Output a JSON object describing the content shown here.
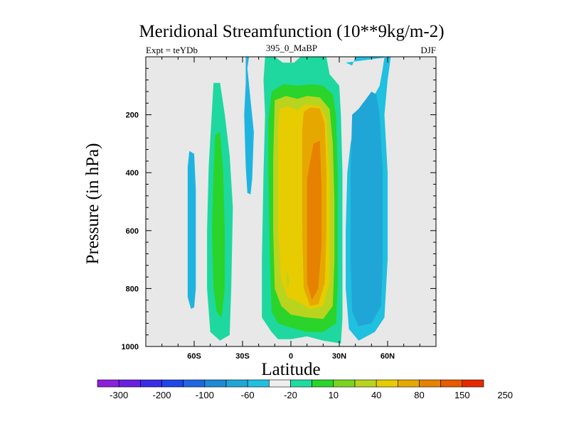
{
  "chart_data": {
    "type": "contour",
    "title": "Meridional Streamfunction (10**9kg/m-2)",
    "left_string": "Expt = teYDb",
    "center_string": "395_0_MaBP",
    "right_string": "DJF",
    "xlabel": "Latitude",
    "ylabel": "Pressure (in hPa)",
    "xlim": [
      -90,
      90
    ],
    "ylim": [
      1000,
      0
    ],
    "x_ticks": [
      {
        "value": -60,
        "label": "60S"
      },
      {
        "value": -30,
        "label": "30S"
      },
      {
        "value": 0,
        "label": "0"
      },
      {
        "value": 30,
        "label": "30N"
      },
      {
        "value": 60,
        "label": "60N"
      }
    ],
    "y_ticks": [
      {
        "value": 200,
        "label": "200"
      },
      {
        "value": 400,
        "label": "400"
      },
      {
        "value": 600,
        "label": "600"
      },
      {
        "value": 800,
        "label": "800"
      },
      {
        "value": 1000,
        "label": "1000"
      }
    ],
    "colorbar": {
      "labels": [
        "-300",
        "-200",
        "-100",
        "-60",
        "-20",
        "10",
        "40",
        "80",
        "150",
        "250"
      ],
      "colors": [
        "#8c1fd9",
        "#6a1fe0",
        "#3b2be8",
        "#1f46e8",
        "#1f66e0",
        "#1f8ad6",
        "#1fa6d6",
        "#1fc0e0",
        "#eeeeee",
        "#1fdca0",
        "#2ad42a",
        "#7cd41f",
        "#b8d41f",
        "#e6cc00",
        "#e6a800",
        "#e68200",
        "#e65a00",
        "#e62a00"
      ]
    },
    "regions": [
      {
        "name": "sh-high-lat-negative-cell",
        "fill": "#1fb4e0",
        "points": [
          [
            -63,
            325
          ],
          [
            -60,
            335
          ],
          [
            -59,
            460
          ],
          [
            -59,
            800
          ],
          [
            -60,
            865
          ],
          [
            -62,
            870
          ],
          [
            -64,
            830
          ],
          [
            -64,
            600
          ],
          [
            -64,
            380
          ]
        ]
      },
      {
        "name": "sh-midlat-positive-cell",
        "fill": "#1ed8a0",
        "points": [
          [
            -48,
            90
          ],
          [
            -44,
            90
          ],
          [
            -41,
            200
          ],
          [
            -38,
            340
          ],
          [
            -36,
            520
          ],
          [
            -37,
            800
          ],
          [
            -38,
            960
          ],
          [
            -44,
            980
          ],
          [
            -50,
            950
          ],
          [
            -52,
            800
          ],
          [
            -52,
            600
          ],
          [
            -51,
            380
          ]
        ]
      },
      {
        "name": "sh-midlat-positive-core",
        "fill": "#2ad42a",
        "points": [
          [
            -47,
            270
          ],
          [
            -44,
            260
          ],
          [
            -42,
            400
          ],
          [
            -41,
            600
          ],
          [
            -41,
            800
          ],
          [
            -43,
            900
          ],
          [
            -46,
            880
          ],
          [
            -48,
            800
          ],
          [
            -49,
            600
          ],
          [
            -48,
            400
          ]
        ]
      },
      {
        "name": "sh-upper-negative-streak",
        "fill": "#1fb4e0",
        "points": [
          [
            -28,
            0
          ],
          [
            -26,
            0
          ],
          [
            -27,
            40
          ],
          [
            -25,
            150
          ],
          [
            -23,
            260
          ],
          [
            -24,
            420
          ],
          [
            -25,
            475
          ],
          [
            -27,
            470
          ],
          [
            -28,
            380
          ],
          [
            -29,
            200
          ],
          [
            -28,
            90
          ]
        ]
      },
      {
        "name": "tropical-cell-outer",
        "fill": "#1ed8a0",
        "points": [
          [
            -16,
            0
          ],
          [
            -10,
            0
          ],
          [
            -5,
            20
          ],
          [
            2,
            20
          ],
          [
            6,
            0
          ],
          [
            22,
            0
          ],
          [
            24,
            60
          ],
          [
            30,
            100
          ],
          [
            31,
            200
          ],
          [
            32,
            400
          ],
          [
            32,
            600
          ],
          [
            32,
            900
          ],
          [
            31,
            990
          ],
          [
            26,
            985
          ],
          [
            20,
            980
          ],
          [
            10,
            965
          ],
          [
            0,
            975
          ],
          [
            -8,
            975
          ],
          [
            -12,
            950
          ],
          [
            -18,
            900
          ],
          [
            -18,
            700
          ],
          [
            -17,
            400
          ],
          [
            -16,
            200
          ],
          [
            -17,
            80
          ]
        ]
      },
      {
        "name": "tropical-cell-40",
        "fill": "#2ad42a",
        "points": [
          [
            -12,
            120
          ],
          [
            -5,
            95
          ],
          [
            5,
            100
          ],
          [
            12,
            95
          ],
          [
            20,
            100
          ],
          [
            26,
            130
          ],
          [
            28,
            200
          ],
          [
            29,
            400
          ],
          [
            29,
            600
          ],
          [
            29,
            800
          ],
          [
            28,
            920
          ],
          [
            20,
            950
          ],
          [
            10,
            950
          ],
          [
            0,
            935
          ],
          [
            -8,
            920
          ],
          [
            -12,
            880
          ],
          [
            -13,
            700
          ],
          [
            -14,
            400
          ],
          [
            -14,
            220
          ]
        ]
      },
      {
        "name": "tropical-cell-80",
        "fill": "#b8d41f",
        "points": [
          [
            -10,
            150
          ],
          [
            -3,
            135
          ],
          [
            4,
            145
          ],
          [
            10,
            135
          ],
          [
            18,
            140
          ],
          [
            24,
            180
          ],
          [
            26,
            300
          ],
          [
            27,
            500
          ],
          [
            27,
            700
          ],
          [
            26,
            860
          ],
          [
            20,
            905
          ],
          [
            10,
            900
          ],
          [
            0,
            890
          ],
          [
            -6,
            860
          ],
          [
            -10,
            800
          ],
          [
            -11,
            600
          ],
          [
            -11,
            350
          ]
        ]
      },
      {
        "name": "tropical-cell-150",
        "fill": "#e6cc00",
        "points": [
          [
            -7,
            180
          ],
          [
            -2,
            170
          ],
          [
            4,
            185
          ],
          [
            9,
            165
          ],
          [
            18,
            170
          ],
          [
            22,
            215
          ],
          [
            24,
            400
          ],
          [
            24,
            600
          ],
          [
            24,
            780
          ],
          [
            20,
            860
          ],
          [
            12,
            870
          ],
          [
            4,
            845
          ],
          [
            -2,
            830
          ],
          [
            -6,
            770
          ],
          [
            -8,
            600
          ],
          [
            -8,
            400
          ],
          [
            -8,
            250
          ]
        ]
      },
      {
        "name": "tropical-cell-250",
        "fill": "#e6a800",
        "points": [
          [
            8,
            190
          ],
          [
            12,
            175
          ],
          [
            18,
            178
          ],
          [
            21,
            230
          ],
          [
            22,
            400
          ],
          [
            22,
            600
          ],
          [
            21,
            780
          ],
          [
            17,
            855
          ],
          [
            12,
            860
          ],
          [
            8,
            800
          ],
          [
            7,
            600
          ],
          [
            7,
            400
          ],
          [
            7,
            250
          ]
        ]
      },
      {
        "name": "tropical-cell-core",
        "fill": "#e68200",
        "points": [
          [
            10,
            420
          ],
          [
            14,
            300
          ],
          [
            18,
            290
          ],
          [
            19,
            450
          ],
          [
            19,
            650
          ],
          [
            17,
            800
          ],
          [
            13,
            840
          ],
          [
            10,
            780
          ],
          [
            10,
            620
          ]
        ]
      },
      {
        "name": "tropical-small-spot",
        "fill": "#b8d41f",
        "points": [
          [
            -3,
            760
          ],
          [
            -2,
            740
          ],
          [
            -1,
            780
          ],
          [
            -2,
            800
          ]
        ]
      },
      {
        "name": "nh-negative-cell-outer",
        "fill": "#1fc0e0",
        "points": [
          [
            34,
            20
          ],
          [
            38,
            30
          ],
          [
            40,
            0
          ],
          [
            58,
            0
          ],
          [
            57,
            40
          ],
          [
            55,
            100
          ],
          [
            50,
            150
          ],
          [
            45,
            180
          ],
          [
            40,
            210
          ],
          [
            37,
            300
          ],
          [
            35,
            400
          ],
          [
            34,
            600
          ],
          [
            34,
            800
          ],
          [
            36,
            940
          ],
          [
            42,
            980
          ],
          [
            52,
            950
          ],
          [
            58,
            900
          ],
          [
            60,
            700
          ],
          [
            60,
            400
          ],
          [
            58,
            200
          ],
          [
            60,
            80
          ],
          [
            62,
            0
          ]
        ]
      },
      {
        "name": "nh-negative-cell-inner",
        "fill": "#1fa6d6",
        "points": [
          [
            38,
            200
          ],
          [
            42,
            180
          ],
          [
            46,
            150
          ],
          [
            50,
            120
          ],
          [
            53,
            130
          ],
          [
            55,
            200
          ],
          [
            57,
            400
          ],
          [
            57,
            700
          ],
          [
            56,
            860
          ],
          [
            50,
            920
          ],
          [
            42,
            930
          ],
          [
            38,
            880
          ],
          [
            37,
            700
          ],
          [
            37,
            400
          ]
        ]
      }
    ]
  }
}
